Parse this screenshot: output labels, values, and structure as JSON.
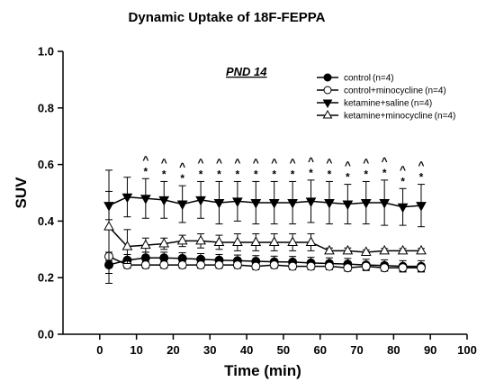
{
  "chart_data": {
    "type": "line",
    "title": "Dynamic Uptake of 18F-FEPPA",
    "xlabel": "Time (min)",
    "ylabel": "SUV",
    "xlim": [
      -10,
      100
    ],
    "ylim": [
      0.0,
      1.0
    ],
    "xticks": [
      0,
      10,
      20,
      30,
      40,
      50,
      60,
      70,
      80,
      90,
      100
    ],
    "xtick_labels": [
      "0",
      "10",
      "20",
      "30",
      "40",
      "50",
      "60",
      "70",
      "80",
      "90",
      "100"
    ],
    "yticks": [
      0.0,
      0.2,
      0.4,
      0.6,
      0.8,
      1.0
    ],
    "ytick_labels": [
      "0.0",
      "0.2",
      "0.4",
      "0.6",
      "0.8",
      "1.0"
    ],
    "annotation": "PND 14",
    "grid": false,
    "legend_position": "top-right",
    "x": [
      2.5,
      7.5,
      12.5,
      17.5,
      22.5,
      27.5,
      32.5,
      37.5,
      42.5,
      47.5,
      52.5,
      57.5,
      62.5,
      67.5,
      72.5,
      77.5,
      82.5,
      87.5
    ],
    "series": [
      {
        "name": "control",
        "n_label": "(n=4)",
        "marker": "filled-circle",
        "values": [
          0.245,
          0.262,
          0.27,
          0.27,
          0.268,
          0.265,
          0.262,
          0.26,
          0.258,
          0.256,
          0.255,
          0.252,
          0.25,
          0.248,
          0.245,
          0.243,
          0.24,
          0.24
        ],
        "errors": [
          0.03,
          0.02,
          0.02,
          0.02,
          0.02,
          0.02,
          0.02,
          0.02,
          0.02,
          0.02,
          0.02,
          0.02,
          0.02,
          0.02,
          0.02,
          0.02,
          0.02,
          0.02
        ]
      },
      {
        "name": "control+minocycline",
        "n_label": "(n=4)",
        "marker": "open-circle",
        "values": [
          0.275,
          0.245,
          0.245,
          0.245,
          0.245,
          0.245,
          0.245,
          0.245,
          0.24,
          0.245,
          0.24,
          0.24,
          0.24,
          0.235,
          0.24,
          0.235,
          0.235,
          0.235
        ],
        "errors": [
          0.015,
          0.012,
          0.012,
          0.012,
          0.012,
          0.012,
          0.012,
          0.012,
          0.012,
          0.012,
          0.012,
          0.012,
          0.012,
          0.012,
          0.012,
          0.012,
          0.012,
          0.012
        ]
      },
      {
        "name": "ketamine+saline",
        "n_label": "(n=4)",
        "marker": "filled-triangle-down",
        "values": [
          0.455,
          0.485,
          0.48,
          0.475,
          0.46,
          0.475,
          0.465,
          0.47,
          0.465,
          0.465,
          0.465,
          0.47,
          0.465,
          0.46,
          0.465,
          0.465,
          0.45,
          0.455
        ],
        "errors": [
          0.05,
          0.07,
          0.07,
          0.065,
          0.065,
          0.065,
          0.075,
          0.07,
          0.075,
          0.075,
          0.075,
          0.075,
          0.075,
          0.07,
          0.075,
          0.08,
          0.065,
          0.075
        ]
      },
      {
        "name": "ketamine+minocycline",
        "n_label": "(n=4)",
        "marker": "open-triangle-up",
        "values": [
          0.38,
          0.31,
          0.315,
          0.32,
          0.33,
          0.33,
          0.325,
          0.325,
          0.325,
          0.325,
          0.325,
          0.325,
          0.295,
          0.295,
          0.29,
          0.295,
          0.295,
          0.295
        ],
        "errors": [
          0.2,
          0.06,
          0.025,
          0.02,
          0.02,
          0.025,
          0.025,
          0.03,
          0.03,
          0.03,
          0.03,
          0.03,
          0.01,
          0.01,
          0.008,
          0.008,
          0.008,
          0.008
        ]
      }
    ],
    "significance": {
      "x": [
        12.5,
        17.5,
        22.5,
        27.5,
        32.5,
        37.5,
        42.5,
        47.5,
        52.5,
        57.5,
        62.5,
        67.5,
        72.5,
        77.5,
        82.5,
        87.5
      ],
      "symbols": [
        "^",
        "*"
      ]
    }
  }
}
